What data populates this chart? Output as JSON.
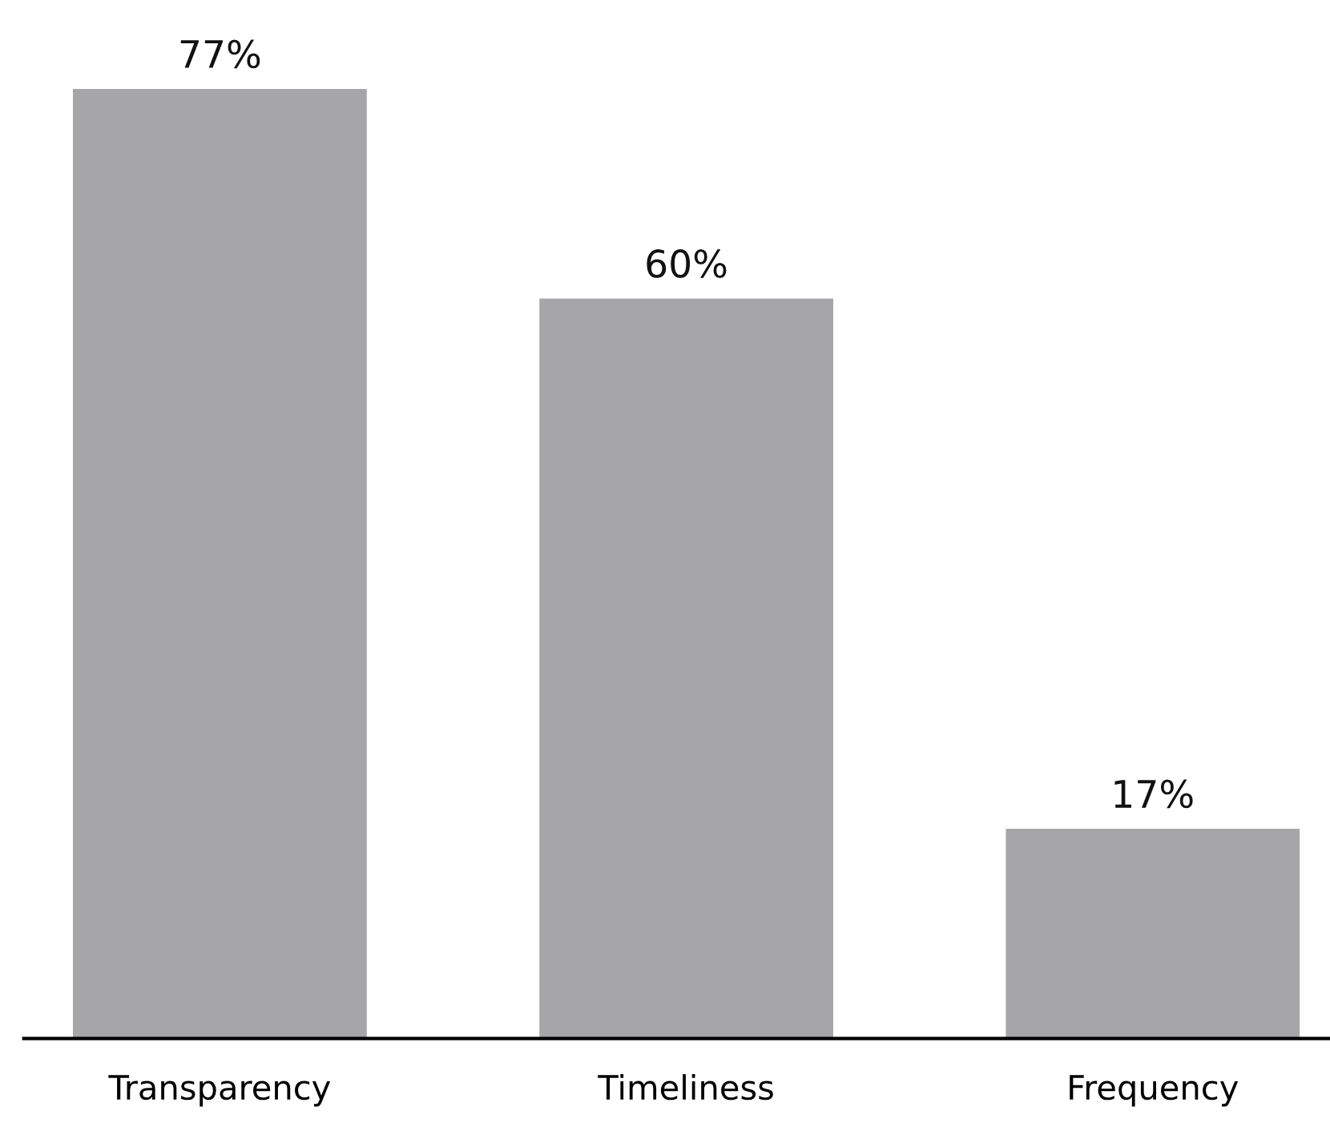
{
  "chart_data": {
    "type": "bar",
    "categories": [
      "Transparency",
      "Timeliness",
      "Frequency"
    ],
    "values": [
      77,
      60,
      17
    ],
    "color": "#a6a6a8",
    "data_labels": true,
    "value_labels": [
      "77%",
      "60%",
      "17%"
    ]
  }
}
